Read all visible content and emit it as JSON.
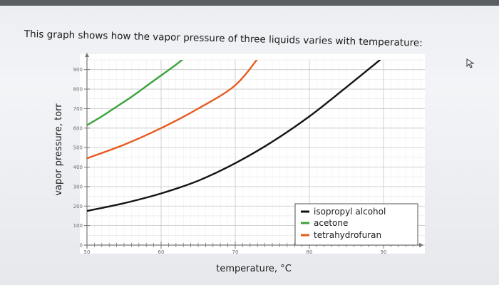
{
  "prompt": "This graph shows how the vapor pressure of three liquids varies with temperature:",
  "chart_data": {
    "type": "line",
    "title": "",
    "xlabel": "temperature, °C",
    "ylabel": "vapor pressure, torr",
    "xlim": [
      50,
      95
    ],
    "ylim": [
      0,
      950
    ],
    "x_ticks": [
      50,
      60,
      70,
      80,
      90
    ],
    "y_ticks": [
      0,
      100,
      200,
      300,
      400,
      500,
      600,
      700,
      800,
      900
    ],
    "grid": true,
    "legend_position": "bottom-right",
    "series": [
      {
        "name": "isopropyl alcohol",
        "color": "#141414",
        "x": [
          50,
          55,
          60,
          65,
          70,
          75,
          80,
          85,
          90.5
        ],
        "y": [
          175,
          215,
          265,
          330,
          420,
          530,
          660,
          810,
          980
        ]
      },
      {
        "name": "acetone",
        "color": "#3aa33a",
        "x": [
          50,
          52,
          54,
          56,
          58,
          60,
          62,
          64
        ],
        "y": [
          615,
          660,
          710,
          760,
          815,
          870,
          925,
          985
        ]
      },
      {
        "name": "tetrahydrofuran",
        "color": "#e85a1e",
        "x": [
          50,
          55,
          60,
          65,
          70,
          73.5
        ],
        "y": [
          445,
          515,
          600,
          700,
          820,
          980
        ]
      }
    ]
  }
}
